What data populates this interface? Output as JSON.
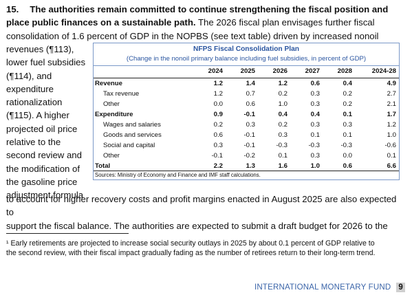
{
  "paragraph": {
    "number": "15.",
    "lead": "The authorities remain committed to continue strengthening the fiscal position and place public finances on a sustainable path.",
    "lines_top": [
      "The 2026 fiscal plan envisages further fiscal",
      "consolidation of 1.6 percent of GDP in the NOPBS (see text table) driven by increased nonoil"
    ],
    "side_lines": [
      "revenues (¶113),",
      "lower fuel subsidies",
      "(¶114), and",
      "expenditure",
      "rationalization",
      "(¶115). A higher",
      "projected oil price",
      "relative to the",
      "second review and",
      "the modification of",
      "the gasoline price",
      "adjustment formula"
    ],
    "lines_bottom": [
      "to account for higher recovery costs and profit margins enacted in August 2025 are also expected to",
      "support the fiscal balance. The authorities are expected to submit a draft budget for 2026 to the"
    ]
  },
  "table": {
    "title": "NFPS Fiscal Consolidation Plan",
    "subtitle": "(Change in the nonoil primary balance including fuel subsidies, in percent of GDP)",
    "columns": [
      "2024",
      "2025",
      "2026",
      "2027",
      "2028",
      "2024-28"
    ],
    "rows": [
      {
        "label": "Revenue",
        "bold": true,
        "indent": false,
        "values": [
          "1.2",
          "1.4",
          "1.2",
          "0.6",
          "0.4",
          "4.9"
        ]
      },
      {
        "label": "Tax revenue",
        "bold": false,
        "indent": true,
        "values": [
          "1.2",
          "0.7",
          "0.2",
          "0.3",
          "0.2",
          "2.7"
        ]
      },
      {
        "label": "Other",
        "bold": false,
        "indent": true,
        "values": [
          "0.0",
          "0.6",
          "1.0",
          "0.3",
          "0.2",
          "2.1"
        ]
      },
      {
        "label": "Expenditure",
        "bold": true,
        "indent": false,
        "values": [
          "0.9",
          "-0.1",
          "0.4",
          "0.4",
          "0.1",
          "1.7"
        ]
      },
      {
        "label": "Wages and salaries",
        "bold": false,
        "indent": true,
        "values": [
          "0.2",
          "0.3",
          "0.2",
          "0.3",
          "0.3",
          "1.2"
        ]
      },
      {
        "label": "Goods and services",
        "bold": false,
        "indent": true,
        "values": [
          "0.6",
          "-0.1",
          "0.3",
          "0.1",
          "0.1",
          "1.0"
        ]
      },
      {
        "label": "Social and capital",
        "bold": false,
        "indent": true,
        "values": [
          "0.3",
          "-0.1",
          "-0.3",
          "-0.3",
          "-0.3",
          "-0.6"
        ]
      },
      {
        "label": "Other",
        "bold": false,
        "indent": true,
        "values": [
          "-0.1",
          "-0.2",
          "0.1",
          "0.3",
          "0.0",
          "0.1"
        ]
      },
      {
        "label": "Total",
        "bold": true,
        "indent": false,
        "values": [
          "2.2",
          "1.3",
          "1.6",
          "1.0",
          "0.6",
          "6.6"
        ]
      }
    ],
    "source": "Sources: Ministry of Economy and Finance and IMF staff calculations."
  },
  "footnote": {
    "lines": [
      "¹ Early retirements are projected to increase social security outlays in 2025 by about 0.1 percent of GDP relative to",
      "the second review, with their fiscal impact gradually fading as the number of retirees return to their long-term trend."
    ]
  },
  "footer": {
    "org": "INTERNATIONAL MONETARY FUND",
    "page": "9"
  },
  "colors": {
    "accent": "#2a55a0",
    "footer_text": "#3a64a8"
  }
}
